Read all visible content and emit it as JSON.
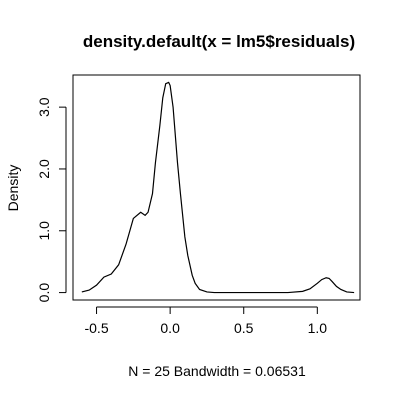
{
  "chart_data": {
    "type": "line",
    "title": "density.default(x = lm5$residuals)",
    "xlabel": "N = 25   Bandwidth = 0.06531",
    "ylabel": "Density",
    "xlim": [
      -0.66,
      1.29
    ],
    "ylim": [
      -0.12,
      3.52
    ],
    "x_ticks": [
      -0.5,
      0.0,
      0.5,
      1.0
    ],
    "x_tick_labels": [
      "-0.5",
      "0.0",
      "0.5",
      "1.0"
    ],
    "y_ticks": [
      0.0,
      1.0,
      2.0,
      3.0
    ],
    "y_tick_labels": [
      "0.0",
      "1.0",
      "2.0",
      "3.0"
    ],
    "grid": false,
    "legend": "none",
    "series": [
      {
        "x": [
          -0.6,
          -0.55,
          -0.5,
          -0.45,
          -0.4,
          -0.35,
          -0.3,
          -0.25,
          -0.2,
          -0.17,
          -0.15,
          -0.12,
          -0.1,
          -0.07,
          -0.05,
          -0.03,
          -0.01,
          0.0,
          0.02,
          0.03,
          0.05,
          0.07,
          0.1,
          0.12,
          0.15,
          0.17,
          0.2,
          0.25,
          0.3,
          0.4,
          0.5,
          0.6,
          0.7,
          0.8,
          0.9,
          0.95,
          1.0,
          1.03,
          1.06,
          1.08,
          1.1,
          1.13,
          1.16,
          1.2,
          1.25
        ],
        "y": [
          0.01,
          0.04,
          0.12,
          0.25,
          0.3,
          0.45,
          0.78,
          1.2,
          1.3,
          1.25,
          1.3,
          1.6,
          2.1,
          2.7,
          3.15,
          3.38,
          3.4,
          3.35,
          3.0,
          2.7,
          2.1,
          1.6,
          0.9,
          0.6,
          0.28,
          0.15,
          0.05,
          0.01,
          0.0,
          0.0,
          0.0,
          0.0,
          0.0,
          0.0,
          0.02,
          0.06,
          0.15,
          0.21,
          0.24,
          0.23,
          0.18,
          0.1,
          0.05,
          0.01,
          0.0
        ]
      }
    ]
  }
}
